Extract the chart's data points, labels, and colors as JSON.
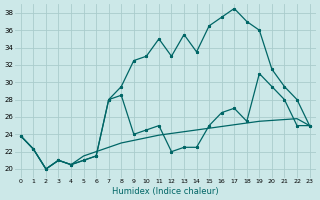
{
  "xlabel": "Humidex (Indice chaleur)",
  "bg_color": "#cce8e8",
  "grid_color": "#aacccc",
  "line_color": "#006666",
  "xlim": [
    -0.5,
    23.5
  ],
  "ylim": [
    19,
    39
  ],
  "yticks": [
    20,
    22,
    24,
    26,
    28,
    30,
    32,
    34,
    36,
    38
  ],
  "xticks": [
    0,
    1,
    2,
    3,
    4,
    5,
    6,
    7,
    8,
    9,
    10,
    11,
    12,
    13,
    14,
    15,
    16,
    17,
    18,
    19,
    20,
    21,
    22,
    23
  ],
  "line1_x": [
    0,
    1,
    2,
    3,
    4,
    5,
    6,
    7,
    8,
    9,
    10,
    11,
    12,
    13,
    14,
    15,
    16,
    17,
    18,
    19,
    20,
    21,
    22,
    23
  ],
  "line1_y": [
    23.8,
    22.3,
    20.0,
    21.0,
    20.5,
    21.0,
    21.5,
    28.0,
    29.5,
    32.5,
    33.0,
    35.0,
    33.0,
    35.5,
    33.5,
    36.5,
    37.5,
    38.5,
    37.0,
    36.0,
    31.5,
    29.5,
    28.0,
    25.0
  ],
  "line2_x": [
    0,
    1,
    2,
    3,
    4,
    5,
    6,
    7,
    8,
    9,
    10,
    11,
    12,
    13,
    14,
    15,
    16,
    17,
    18,
    19,
    20,
    21,
    22,
    23
  ],
  "line2_y": [
    23.8,
    22.3,
    20.0,
    21.0,
    20.5,
    21.0,
    21.5,
    28.0,
    28.5,
    24.0,
    24.5,
    25.0,
    22.0,
    22.5,
    22.5,
    25.0,
    26.5,
    27.0,
    25.5,
    31.0,
    29.5,
    28.0,
    25.0,
    25.0
  ],
  "line3_x": [
    0,
    1,
    2,
    3,
    4,
    5,
    6,
    7,
    8,
    9,
    10,
    11,
    12,
    13,
    14,
    15,
    16,
    17,
    18,
    19,
    20,
    21,
    22,
    23
  ],
  "line3_y": [
    23.8,
    22.3,
    20.0,
    21.0,
    20.5,
    21.5,
    22.0,
    22.5,
    23.0,
    23.3,
    23.6,
    23.9,
    24.1,
    24.3,
    24.5,
    24.7,
    24.9,
    25.1,
    25.3,
    25.5,
    25.6,
    25.7,
    25.8,
    25.0
  ]
}
